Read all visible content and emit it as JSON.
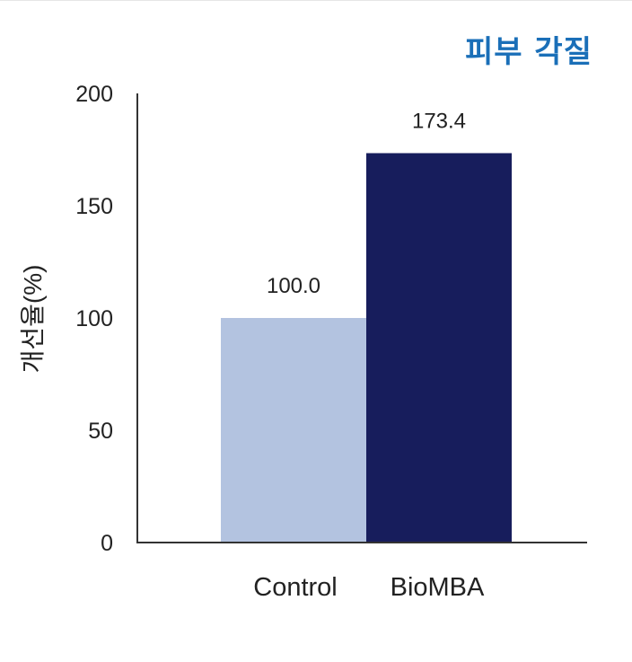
{
  "chart_data": {
    "type": "bar",
    "title": "피부 각질",
    "ylabel": "개선율(%)",
    "xlabel": "",
    "categories": [
      "Control",
      "BioMBA"
    ],
    "values": [
      100.0,
      173.4
    ],
    "data_labels": [
      "100.0",
      "173.4"
    ],
    "colors": [
      "#b3c3e0",
      "#171d5c"
    ],
    "title_color": "#1a6fb8",
    "ylim": [
      0,
      200
    ],
    "yticks": [
      "0",
      "50",
      "100",
      "150",
      "200"
    ],
    "grid": false,
    "legend": "none"
  }
}
